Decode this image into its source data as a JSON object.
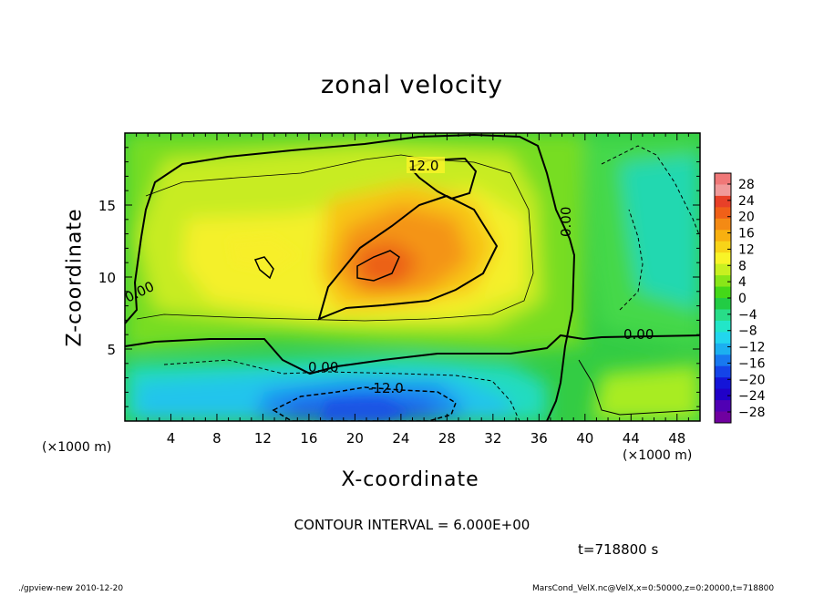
{
  "chart_data": {
    "type": "heatmap",
    "title": "zonal velocity",
    "xlabel": "X-coordinate",
    "ylabel": "Z-coordinate",
    "x_unit_label": "(×1000 m)",
    "xlim": [
      0,
      50
    ],
    "ylim": [
      0,
      20
    ],
    "x_ticks": [
      "4",
      "8",
      "12",
      "16",
      "20",
      "24",
      "28",
      "32",
      "36",
      "40",
      "44",
      "48"
    ],
    "y_ticks": [
      "5",
      "10",
      "15"
    ],
    "colorbar": {
      "labels": [
        "28",
        "24",
        "20",
        "16",
        "12",
        "8",
        "4",
        "0",
        "−4",
        "−8",
        "−12",
        "−16",
        "−20",
        "−24",
        "−28"
      ],
      "colors": [
        "#f07878",
        "#f09a9a",
        "#e84028",
        "#f06018",
        "#f48a14",
        "#f8b010",
        "#f8d418",
        "#f8f428",
        "#c8f020",
        "#88e618",
        "#44d818",
        "#22cc44",
        "#28dd88",
        "#22e6c8",
        "#22d6ee",
        "#1cb0f0",
        "#1878f0",
        "#1444e8",
        "#1414d8",
        "#2000c8",
        "#5000b4",
        "#7000a0"
      ]
    },
    "contour_interval_text": "CONTOUR INTERVAL = 6.000E+00",
    "contour_labels": [
      "12.0",
      "0.00",
      "0.00",
      "0.00",
      "0.00",
      "-12.0"
    ],
    "time_label": "t=718800 s"
  },
  "footer": {
    "left": "./gpview-new  2010-12-20",
    "right": "MarsCond_VelX.nc@VelX,x=0:50000,z=0:20000,t=718800"
  }
}
